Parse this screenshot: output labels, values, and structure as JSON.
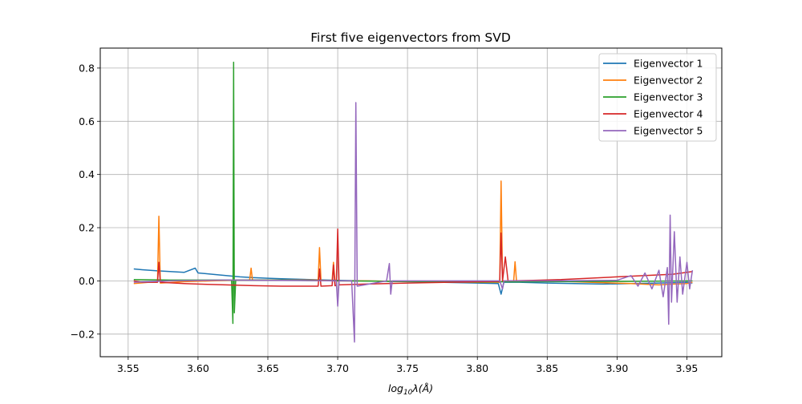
{
  "chart_data": {
    "type": "line",
    "title": "First five eigenvectors from SVD",
    "xlabel": {
      "base": "log",
      "sub": "10",
      "rest": "λ(",
      "unit": "Å",
      "end": ")"
    },
    "ylabel": "",
    "xlim": [
      3.53,
      3.975
    ],
    "ylim": [
      -0.285,
      0.875
    ],
    "xticks": [
      3.55,
      3.6,
      3.65,
      3.7,
      3.75,
      3.8,
      3.85,
      3.9,
      3.95
    ],
    "xtick_labels": [
      "3.55",
      "3.60",
      "3.65",
      "3.70",
      "3.75",
      "3.80",
      "3.85",
      "3.90",
      "3.95"
    ],
    "yticks": [
      -0.2,
      0.0,
      0.2,
      0.4,
      0.6,
      0.8
    ],
    "ytick_labels": [
      "−0.2",
      "0.0",
      "0.2",
      "0.4",
      "0.6",
      "0.8"
    ],
    "grid": true,
    "legend_position": "top-right",
    "series": [
      {
        "name": "Eigenvector 1",
        "color": "#1f77b4",
        "points": [
          [
            3.554,
            0.045
          ],
          [
            3.56,
            0.042
          ],
          [
            3.57,
            0.038
          ],
          [
            3.58,
            0.035
          ],
          [
            3.59,
            0.032
          ],
          [
            3.598,
            0.048
          ],
          [
            3.6,
            0.03
          ],
          [
            3.61,
            0.025
          ],
          [
            3.62,
            0.02
          ],
          [
            3.63,
            0.015
          ],
          [
            3.64,
            0.012
          ],
          [
            3.65,
            0.01
          ],
          [
            3.66,
            0.008
          ],
          [
            3.68,
            0.005
          ],
          [
            3.7,
            0.002
          ],
          [
            3.72,
            0.0
          ],
          [
            3.74,
            -0.002
          ],
          [
            3.76,
            -0.004
          ],
          [
            3.78,
            -0.006
          ],
          [
            3.8,
            -0.008
          ],
          [
            3.815,
            -0.01
          ],
          [
            3.817,
            -0.05
          ],
          [
            3.819,
            -0.005
          ],
          [
            3.83,
            -0.005
          ],
          [
            3.85,
            -0.008
          ],
          [
            3.87,
            -0.01
          ],
          [
            3.89,
            -0.012
          ],
          [
            3.91,
            -0.01
          ],
          [
            3.93,
            -0.008
          ],
          [
            3.95,
            -0.005
          ],
          [
            3.954,
            -0.008
          ]
        ]
      },
      {
        "name": "Eigenvector 2",
        "color": "#ff7f0e",
        "points": [
          [
            3.554,
            -0.01
          ],
          [
            3.565,
            -0.005
          ],
          [
            3.571,
            -0.005
          ],
          [
            3.572,
            0.243
          ],
          [
            3.573,
            -0.008
          ],
          [
            3.59,
            -0.003
          ],
          [
            3.61,
            0.0
          ],
          [
            3.63,
            0.003
          ],
          [
            3.637,
            0.003
          ],
          [
            3.638,
            0.048
          ],
          [
            3.639,
            0.003
          ],
          [
            3.66,
            0.003
          ],
          [
            3.686,
            0.003
          ],
          [
            3.687,
            0.125
          ],
          [
            3.688,
            0.002
          ],
          [
            3.696,
            0.001
          ],
          [
            3.697,
            0.07
          ],
          [
            3.698,
            0.0
          ],
          [
            3.72,
            0.0
          ],
          [
            3.75,
            -0.002
          ],
          [
            3.78,
            -0.004
          ],
          [
            3.8,
            -0.005
          ],
          [
            3.816,
            -0.005
          ],
          [
            3.817,
            0.375
          ],
          [
            3.818,
            0.0
          ],
          [
            3.826,
            0.0
          ],
          [
            3.827,
            0.072
          ],
          [
            3.828,
            0.0
          ],
          [
            3.85,
            0.0
          ],
          [
            3.88,
            -0.005
          ],
          [
            3.91,
            -0.01
          ],
          [
            3.93,
            -0.015
          ],
          [
            3.94,
            -0.012
          ],
          [
            3.95,
            -0.01
          ],
          [
            3.954,
            -0.005
          ]
        ]
      },
      {
        "name": "Eigenvector 3",
        "color": "#2ca02c",
        "points": [
          [
            3.554,
            0.005
          ],
          [
            3.58,
            0.003
          ],
          [
            3.6,
            0.003
          ],
          [
            3.62,
            0.003
          ],
          [
            3.624,
            0.003
          ],
          [
            3.625,
            -0.16
          ],
          [
            3.6255,
            0.822
          ],
          [
            3.626,
            -0.12
          ],
          [
            3.627,
            0.003
          ],
          [
            3.66,
            0.003
          ],
          [
            3.7,
            0.0
          ],
          [
            3.75,
            -0.002
          ],
          [
            3.8,
            -0.004
          ],
          [
            3.85,
            -0.003
          ],
          [
            3.9,
            -0.002
          ],
          [
            3.954,
            0.0
          ]
        ]
      },
      {
        "name": "Eigenvector 4",
        "color": "#d62728",
        "points": [
          [
            3.554,
            0.0
          ],
          [
            3.56,
            -0.005
          ],
          [
            3.571,
            -0.005
          ],
          [
            3.572,
            0.07
          ],
          [
            3.573,
            -0.005
          ],
          [
            3.59,
            -0.01
          ],
          [
            3.6,
            -0.012
          ],
          [
            3.62,
            -0.015
          ],
          [
            3.64,
            -0.018
          ],
          [
            3.66,
            -0.02
          ],
          [
            3.686,
            -0.02
          ],
          [
            3.687,
            0.045
          ],
          [
            3.688,
            -0.02
          ],
          [
            3.696,
            -0.018
          ],
          [
            3.697,
            0.06
          ],
          [
            3.698,
            -0.018
          ],
          [
            3.699,
            -0.018
          ],
          [
            3.7,
            0.195
          ],
          [
            3.701,
            -0.015
          ],
          [
            3.72,
            -0.012
          ],
          [
            3.75,
            -0.008
          ],
          [
            3.78,
            -0.005
          ],
          [
            3.8,
            -0.003
          ],
          [
            3.816,
            -0.002
          ],
          [
            3.817,
            0.18
          ],
          [
            3.818,
            0.0
          ],
          [
            3.82,
            0.09
          ],
          [
            3.822,
            0.0
          ],
          [
            3.84,
            0.002
          ],
          [
            3.86,
            0.005
          ],
          [
            3.88,
            0.01
          ],
          [
            3.9,
            0.015
          ],
          [
            3.92,
            0.02
          ],
          [
            3.94,
            0.025
          ],
          [
            3.954,
            0.035
          ]
        ]
      },
      {
        "name": "Eigenvector 5",
        "color": "#9467bd",
        "points": [
          [
            3.554,
            -0.005
          ],
          [
            3.58,
            0.0
          ],
          [
            3.62,
            0.003
          ],
          [
            3.66,
            0.002
          ],
          [
            3.699,
            0.0
          ],
          [
            3.7,
            -0.095
          ],
          [
            3.701,
            0.0
          ],
          [
            3.71,
            0.0
          ],
          [
            3.712,
            -0.23
          ],
          [
            3.713,
            0.67
          ],
          [
            3.714,
            -0.02
          ],
          [
            3.735,
            0.0
          ],
          [
            3.737,
            0.065
          ],
          [
            3.738,
            -0.05
          ],
          [
            3.739,
            0.0
          ],
          [
            3.78,
            0.0
          ],
          [
            3.816,
            0.0
          ],
          [
            3.818,
            -0.03
          ],
          [
            3.819,
            0.0
          ],
          [
            3.85,
            0.0
          ],
          [
            3.9,
            0.002
          ],
          [
            3.91,
            0.02
          ],
          [
            3.915,
            -0.02
          ],
          [
            3.92,
            0.03
          ],
          [
            3.925,
            -0.03
          ],
          [
            3.93,
            0.04
          ],
          [
            3.933,
            -0.06
          ],
          [
            3.936,
            0.05
          ],
          [
            3.937,
            -0.163
          ],
          [
            3.938,
            0.247
          ],
          [
            3.939,
            -0.08
          ],
          [
            3.941,
            0.185
          ],
          [
            3.943,
            -0.08
          ],
          [
            3.945,
            0.09
          ],
          [
            3.947,
            -0.05
          ],
          [
            3.95,
            0.07
          ],
          [
            3.952,
            -0.03
          ],
          [
            3.954,
            0.04
          ]
        ]
      }
    ]
  }
}
